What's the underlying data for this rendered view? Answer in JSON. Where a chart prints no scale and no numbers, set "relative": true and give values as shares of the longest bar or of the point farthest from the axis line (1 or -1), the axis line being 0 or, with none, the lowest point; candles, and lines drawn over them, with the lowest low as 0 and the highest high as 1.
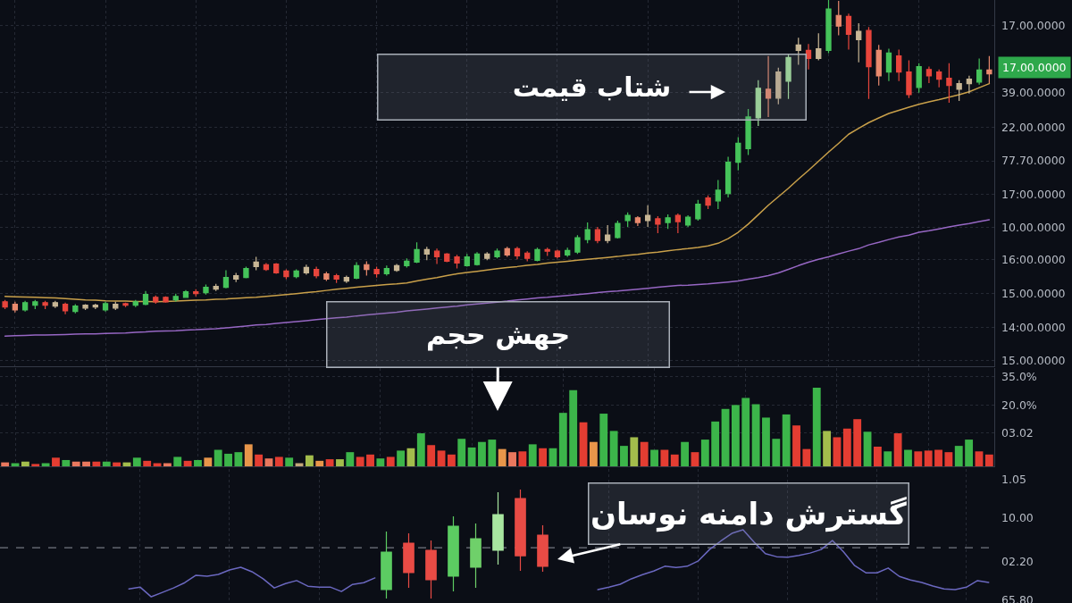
{
  "chart_data": [
    {
      "type": "candlestick",
      "relative": true,
      "grid": true,
      "categories": [
        null,
        null,
        null,
        null,
        null,
        null,
        null,
        null,
        null,
        null,
        null,
        null,
        null,
        null,
        null,
        null,
        null,
        null,
        null,
        null,
        null,
        null,
        null,
        null,
        null,
        null,
        null,
        null,
        null,
        null,
        null,
        null,
        null,
        null,
        null,
        null,
        null,
        null,
        null,
        null,
        null,
        null,
        null,
        null,
        null,
        null,
        null,
        null,
        null,
        null,
        null,
        null,
        null,
        null,
        null,
        null,
        null,
        null,
        null,
        null,
        null,
        null,
        null,
        null,
        null,
        null,
        null,
        null,
        null,
        null,
        null,
        null,
        null,
        null,
        null,
        null,
        null,
        null,
        null,
        null,
        null,
        null,
        null,
        null,
        null,
        null,
        null,
        null,
        null,
        null,
        null,
        null,
        null,
        null,
        null,
        null,
        null,
        null,
        null
      ],
      "ohlc": [
        [
          0.04,
          0.046,
          0.017,
          0.023
        ],
        [
          0.032,
          0.04,
          0.006,
          0.014
        ],
        [
          0.014,
          0.043,
          0.009,
          0.037
        ],
        [
          0.029,
          0.046,
          0.017,
          0.04
        ],
        [
          0.037,
          0.043,
          0.017,
          0.029
        ],
        [
          0.026,
          0.043,
          0.02,
          0.037
        ],
        [
          0.032,
          0.037,
          0,
          0.011
        ],
        [
          0.009,
          0.032,
          0.003,
          0.026
        ],
        [
          0.02,
          0.032,
          0.014,
          0.029
        ],
        [
          0.023,
          0.034,
          0.017,
          0.029
        ],
        [
          0.014,
          0.04,
          0.009,
          0.034
        ],
        [
          0.02,
          0.04,
          0.014,
          0.032
        ],
        [
          0.034,
          0.037,
          0.023,
          0.029
        ],
        [
          0.029,
          0.046,
          0.023,
          0.04
        ],
        [
          0.032,
          0.074,
          0.029,
          0.063
        ],
        [
          0.054,
          0.06,
          0.034,
          0.04
        ],
        [
          0.054,
          0.057,
          0.037,
          0.04
        ],
        [
          0.046,
          0.066,
          0.04,
          0.057
        ],
        [
          0.054,
          0.077,
          0.052,
          0.072
        ],
        [
          0.072,
          0.08,
          0.057,
          0.066
        ],
        [
          0.069,
          0.095,
          0.063,
          0.086
        ],
        [
          0.08,
          0.097,
          0.074,
          0.089
        ],
        [
          0.086,
          0.14,
          0.083,
          0.117
        ],
        [
          0.112,
          0.132,
          0.103,
          0.123
        ],
        [
          0.117,
          0.152,
          0.115,
          0.146
        ],
        [
          0.152,
          0.183,
          0.14,
          0.166
        ],
        [
          0.158,
          0.163,
          0.138,
          0.143
        ],
        [
          0.16,
          0.163,
          0.129,
          0.132
        ],
        [
          0.138,
          0.143,
          0.112,
          0.12
        ],
        [
          0.12,
          0.143,
          0.115,
          0.138
        ],
        [
          0.132,
          0.158,
          0.126,
          0.149
        ],
        [
          0.143,
          0.152,
          0.115,
          0.123
        ],
        [
          0.129,
          0.135,
          0.106,
          0.112
        ],
        [
          0.123,
          0.129,
          0.1,
          0.112
        ],
        [
          0.106,
          0.123,
          0.1,
          0.117
        ],
        [
          0.115,
          0.166,
          0.112,
          0.155
        ],
        [
          0.158,
          0.169,
          0.123,
          0.143
        ],
        [
          0.143,
          0.152,
          0.117,
          0.129
        ],
        [
          0.129,
          0.155,
          0.123,
          0.146
        ],
        [
          0.14,
          0.16,
          0.135,
          0.155
        ],
        [
          0.155,
          0.178,
          0.149,
          0.169
        ],
        [
          0.166,
          0.229,
          0.163,
          0.206
        ],
        [
          0.192,
          0.215,
          0.172,
          0.206
        ],
        [
          0.201,
          0.209,
          0.16,
          0.183
        ],
        [
          0.192,
          0.195,
          0.166,
          0.169
        ],
        [
          0.183,
          0.189,
          0.146,
          0.163
        ],
        [
          0.155,
          0.192,
          0.152,
          0.183
        ],
        [
          0.158,
          0.198,
          0.155,
          0.192
        ],
        [
          0.178,
          0.198,
          0.172,
          0.192
        ],
        [
          0.183,
          0.209,
          0.178,
          0.201
        ],
        [
          0.209,
          0.215,
          0.183,
          0.189
        ],
        [
          0.209,
          0.215,
          0.175,
          0.186
        ],
        [
          0.195,
          0.201,
          0.169,
          0.178
        ],
        [
          0.172,
          0.212,
          0.169,
          0.206
        ],
        [
          0.206,
          0.212,
          0.186,
          0.201
        ],
        [
          0.201,
          0.206,
          0.178,
          0.183
        ],
        [
          0.189,
          0.212,
          0.183,
          0.203
        ],
        [
          0.198,
          0.252,
          0.192,
          0.244
        ],
        [
          0.238,
          0.292,
          0.226,
          0.269
        ],
        [
          0.269,
          0.278,
          0.226,
          0.235
        ],
        [
          0.235,
          0.284,
          0.226,
          0.252
        ],
        [
          0.244,
          0.298,
          0.241,
          0.289
        ],
        [
          0.298,
          0.324,
          0.278,
          0.315
        ],
        [
          0.307,
          0.312,
          0.281,
          0.292
        ],
        [
          0.298,
          0.347,
          0.278,
          0.315
        ],
        [
          0.304,
          0.312,
          0.258,
          0.287
        ],
        [
          0.292,
          0.318,
          0.272,
          0.307
        ],
        [
          0.315,
          0.321,
          0.258,
          0.295
        ],
        [
          0.284,
          0.315,
          0.278,
          0.309
        ],
        [
          0.304,
          0.364,
          0.298,
          0.35
        ],
        [
          0.37,
          0.378,
          0.335,
          0.347
        ],
        [
          0.361,
          0.427,
          0.335,
          0.395
        ],
        [
          0.384,
          0.501,
          0.372,
          0.484
        ],
        [
          0.484,
          0.564,
          0.458,
          0.544
        ],
        [
          0.527,
          0.653,
          0.507,
          0.628
        ],
        [
          0.625,
          0.745,
          0.599,
          0.719
        ],
        [
          0.716,
          0.822,
          0.628,
          0.688
        ],
        [
          0.688,
          0.785,
          0.668,
          0.771
        ],
        [
          0.742,
          0.828,
          0.685,
          0.817
        ],
        [
          0.84,
          0.88,
          0.794,
          0.857
        ],
        [
          0.84,
          0.86,
          0.779,
          0.814
        ],
        [
          0.814,
          0.894,
          0.808,
          0.845
        ],
        [
          0.84,
          1,
          0.831,
          0.971
        ],
        [
          0.951,
          0.997,
          0.888,
          0.917
        ],
        [
          0.948,
          0.957,
          0.842,
          0.891
        ],
        [
          0.874,
          0.926,
          0.802,
          0.9
        ],
        [
          0.903,
          0.914,
          0.685,
          0.788
        ],
        [
          0.84,
          0.857,
          0.728,
          0.759
        ],
        [
          0.771,
          0.845,
          0.742,
          0.831
        ],
        [
          0.822,
          0.842,
          0.742,
          0.771
        ],
        [
          0.771,
          0.808,
          0.688,
          0.699
        ],
        [
          0.722,
          0.799,
          0.705,
          0.788
        ],
        [
          0.779,
          0.788,
          0.736,
          0.759
        ],
        [
          0.771,
          0.779,
          0.722,
          0.748
        ],
        [
          0.751,
          0.799,
          0.673,
          0.728
        ],
        [
          0.716,
          0.745,
          0.679,
          0.734
        ],
        [
          0.734,
          0.759,
          0.702,
          0.748
        ],
        [
          0.739,
          0.814,
          0.731,
          0.777
        ],
        [
          0.777,
          0.822,
          0.736,
          0.765
        ]
      ],
      "colors": [
        "#e8453c",
        "#e98a6e",
        "#45c35a",
        "#45c35a",
        "#e8453c",
        "#c8b695",
        "#e8453c",
        "#45c35a",
        "#c8b695",
        "#c8b695",
        "#45c35a",
        "#c8b695",
        "#e8453c",
        "#45c35a",
        "#45c35a",
        "#e8453c",
        "#e8453c",
        "#45c35a",
        "#45c35a",
        "#e8453c",
        "#45c35a",
        "#c8b695",
        "#45c35a",
        "#c8b695",
        "#45c35a",
        "#c8b695",
        "#e8453c",
        "#e8453c",
        "#e8453c",
        "#45c35a",
        "#c8b695",
        "#e8453c",
        "#e98a6e",
        "#e8453c",
        "#c8b695",
        "#45c35a",
        "#e98a6e",
        "#e8453c",
        "#45c35a",
        "#c8b695",
        "#45c35a",
        "#45c35a",
        "#c8b695",
        "#e8453c",
        "#e8453c",
        "#e8453c",
        "#45c35a",
        "#45c35a",
        "#c8b695",
        "#45c35a",
        "#e98a6e",
        "#e8453c",
        "#e8453c",
        "#45c35a",
        "#e8453c",
        "#e8453c",
        "#45c35a",
        "#45c35a",
        "#45c35a",
        "#e8453c",
        "#c8b695",
        "#45c35a",
        "#45c35a",
        "#e98a6e",
        "#c8b695",
        "#e8453c",
        "#45c35a",
        "#e8453c",
        "#45c35a",
        "#45c35a",
        "#e8453c",
        "#45c35a",
        "#45c35a",
        "#45c35a",
        "#45c35a",
        "#a3e29c",
        "#e98a6e",
        "#c8b695",
        "#a3e29c",
        "#c8b695",
        "#e8453c",
        "#c8b695",
        "#45c35a",
        "#e98a6e",
        "#e8453c",
        "#c8b695",
        "#e8453c",
        "#e98a6e",
        "#45c35a",
        "#e8453c",
        "#e8453c",
        "#45c35a",
        "#e8453c",
        "#e8453c",
        "#e8453c",
        "#c8b695",
        "#c8b695",
        "#45c35a",
        "#e98a6e"
      ],
      "series": [
        {
          "type": "line",
          "color": "#c9a04a",
          "values": [
            0.057,
            0.056,
            0.055,
            0.054,
            0.053,
            0.052,
            0.05,
            0.048,
            0.046,
            0.045,
            0.043,
            0.042,
            0.042,
            0.041,
            0.041,
            0.04,
            0.041,
            0.042,
            0.044,
            0.045,
            0.046,
            0.048,
            0.049,
            0.051,
            0.053,
            0.054,
            0.057,
            0.06,
            0.063,
            0.066,
            0.069,
            0.072,
            0.076,
            0.08,
            0.083,
            0.086,
            0.089,
            0.092,
            0.095,
            0.097,
            0.1,
            0.106,
            0.112,
            0.117,
            0.123,
            0.129,
            0.133,
            0.137,
            0.141,
            0.145,
            0.149,
            0.152,
            0.156,
            0.159,
            0.163,
            0.166,
            0.169,
            0.172,
            0.175,
            0.178,
            0.181,
            0.184,
            0.188,
            0.191,
            0.195,
            0.198,
            0.202,
            0.206,
            0.209,
            0.213,
            0.218,
            0.226,
            0.241,
            0.261,
            0.287,
            0.317,
            0.347,
            0.374,
            0.401,
            0.43,
            0.458,
            0.487,
            0.516,
            0.544,
            0.573,
            0.592,
            0.61,
            0.625,
            0.639,
            0.649,
            0.659,
            0.668,
            0.676,
            0.683,
            0.691,
            0.699,
            0.708,
            0.721,
            0.734
          ]
        },
        {
          "type": "line",
          "color": "#9767c4",
          "values": [
            -0.069,
            -0.068,
            -0.067,
            -0.066,
            -0.066,
            -0.065,
            -0.064,
            -0.063,
            -0.062,
            -0.062,
            -0.061,
            -0.06,
            -0.059,
            -0.057,
            -0.056,
            -0.054,
            -0.053,
            -0.052,
            -0.05,
            -0.049,
            -0.047,
            -0.046,
            -0.043,
            -0.04,
            -0.037,
            -0.034,
            -0.032,
            -0.029,
            -0.026,
            -0.023,
            -0.02,
            -0.017,
            -0.014,
            -0.011,
            -0.009,
            -0.005,
            -0.002,
            0.001,
            0.004,
            0.007,
            0.011,
            0.014,
            0.017,
            0.02,
            0.023,
            0.026,
            0.03,
            0.033,
            0.036,
            0.039,
            0.042,
            0.046,
            0.049,
            0.052,
            0.054,
            0.057,
            0.06,
            0.063,
            0.066,
            0.069,
            0.072,
            0.074,
            0.077,
            0.08,
            0.083,
            0.086,
            0.089,
            0.092,
            0.093,
            0.095,
            0.097,
            0.1,
            0.103,
            0.106,
            0.112,
            0.117,
            0.123,
            0.132,
            0.143,
            0.155,
            0.166,
            0.175,
            0.183,
            0.192,
            0.201,
            0.209,
            0.221,
            0.229,
            0.238,
            0.246,
            0.252,
            0.261,
            0.266,
            0.272,
            0.278,
            0.284,
            0.289,
            0.295,
            0.301
          ]
        }
      ],
      "annotations": [
        "شتاب قیمت",
        "17.00.0000",
        "17.00.0000",
        "39.00.0000",
        "22.00.0000",
        "77.70.0000",
        "17:00.0000",
        "10.00.0000",
        "16:00.0000",
        "15.00.0000",
        "14:00.0000",
        "15.00.0000"
      ]
    },
    {
      "type": "bar",
      "relative": true,
      "grid": true,
      "categories": [
        null,
        null,
        null,
        null,
        null,
        null,
        null,
        null,
        null,
        null,
        null,
        null,
        null,
        null,
        null,
        null,
        null,
        null,
        null,
        null,
        null,
        null,
        null,
        null,
        null,
        null,
        null,
        null,
        null,
        null,
        null,
        null,
        null,
        null,
        null,
        null,
        null,
        null,
        null,
        null,
        null,
        null,
        null,
        null,
        null,
        null,
        null,
        null,
        null,
        null,
        null,
        null,
        null,
        null,
        null,
        null,
        null,
        null,
        null,
        null,
        null,
        null,
        null,
        null,
        null,
        null,
        null,
        null,
        null,
        null,
        null,
        null,
        null,
        null,
        null,
        null,
        null,
        null,
        null,
        null,
        null,
        null,
        null,
        null,
        null,
        null,
        null,
        null,
        null,
        null,
        null,
        null,
        null,
        null,
        null,
        null,
        null,
        null
      ],
      "values": [
        0.05,
        0.04,
        0.06,
        0.03,
        0.04,
        0.11,
        0.08,
        0.06,
        0.06,
        0.06,
        0.06,
        0.05,
        0.05,
        0.11,
        0.07,
        0.04,
        0.04,
        0.12,
        0.07,
        0.08,
        0.11,
        0.21,
        0.16,
        0.18,
        0.28,
        0.15,
        0.1,
        0.12,
        0.11,
        0.04,
        0.14,
        0.07,
        0.09,
        0.09,
        0.18,
        0.12,
        0.15,
        0.1,
        0.12,
        0.2,
        0.23,
        0.42,
        0.27,
        0.2,
        0.15,
        0.35,
        0.24,
        0.31,
        0.34,
        0.22,
        0.18,
        0.19,
        0.28,
        0.23,
        0.23,
        0.68,
        0.97,
        0.56,
        0.31,
        0.67,
        0.45,
        0.26,
        0.37,
        0.31,
        0.21,
        0.21,
        0.15,
        0.31,
        0.18,
        0.34,
        0.57,
        0.73,
        0.78,
        0.87,
        0.79,
        0.62,
        0.35,
        0.66,
        0.52,
        0.22,
        1,
        0.45,
        0.37,
        0.48,
        0.6,
        0.44,
        0.25,
        0.19,
        0.42,
        0.21,
        0.19,
        0.2,
        0.21,
        0.18,
        0.26,
        0.34,
        0.19,
        0.15
      ],
      "colors": [
        "#e9785e",
        "#3cb54a",
        "#a3bd4c",
        "#e43d32",
        "#3cb54a",
        "#e43d32",
        "#3cb54a",
        "#e9785e",
        "#e9785e",
        "#e43d32",
        "#3cb54a",
        "#e43d32",
        "#a3bd4c",
        "#3cb54a",
        "#e43d32",
        "#e43d32",
        "#e9785e",
        "#3cb54a",
        "#e43d32",
        "#3cb54a",
        "#e8964a",
        "#3cb54a",
        "#3cb54a",
        "#3cb54a",
        "#e8964a",
        "#e43d32",
        "#e9785e",
        "#e43d32",
        "#3cb54a",
        "#c4a77a",
        "#a3bd4c",
        "#e8964a",
        "#e43d32",
        "#a3bd4c",
        "#3cb54a",
        "#e43d32",
        "#e43d32",
        "#3cb54a",
        "#e43d32",
        "#3cb54a",
        "#a3bd4c",
        "#3cb54a",
        "#e43d32",
        "#e43d32",
        "#e43d32",
        "#3cb54a",
        "#3cb54a",
        "#3cb54a",
        "#3cb54a",
        "#e8964a",
        "#e9785e",
        "#e43d32",
        "#3cb54a",
        "#e43d32",
        "#3cb54a",
        "#3cb54a",
        "#3cb54a",
        "#e43d32",
        "#e8964a",
        "#3cb54a",
        "#3cb54a",
        "#3cb54a",
        "#a3bd4c",
        "#e43d32",
        "#3cb54a",
        "#e43d32",
        "#e43d32",
        "#3cb54a",
        "#e43d32",
        "#3cb54a",
        "#3cb54a",
        "#3cb54a",
        "#3cb54a",
        "#3cb54a",
        "#3cb54a",
        "#3cb54a",
        "#3cb54a",
        "#3cb54a",
        "#e43d32",
        "#e43d32",
        "#3cb54a",
        "#a3bd4c",
        "#e43d32",
        "#e43d32",
        "#e43d32",
        "#3cb54a",
        "#e43d32",
        "#3cb54a",
        "#e43d32",
        "#3cb54a",
        "#e43d32",
        "#e43d32",
        "#e43d32",
        "#e43d32",
        "#3cb54a",
        "#3cb54a",
        "#e43d32",
        "#e43d32"
      ],
      "annotations": [
        "جهش حجم",
        "35.0%",
        "20.0%",
        "03.02"
      ]
    },
    {
      "type": "line",
      "relative": true,
      "grid": true,
      "color": "#6b68c0",
      "categories": [
        null,
        null,
        null,
        null,
        null,
        null,
        null,
        null,
        null,
        null,
        null,
        null,
        null,
        null,
        null,
        null,
        null,
        null,
        null,
        null,
        null,
        null,
        null
      ],
      "values": [
        0.27,
        0.33,
        0,
        0.15,
        0.3,
        0.48,
        0.73,
        0.7,
        0.76,
        0.91,
        1,
        0.85,
        0.61,
        0.3,
        0.45,
        0.55,
        0.36,
        0.33,
        0.33,
        0.18,
        0.42,
        0.48,
        0.64
      ]
    },
    {
      "type": "candlestick",
      "relative": true,
      "categories": [
        null,
        null,
        null,
        null,
        null,
        null,
        null,
        null
      ],
      "ohlc": [
        [
          0.082,
          0.615,
          0,
          0.426
        ],
        [
          0.508,
          0.598,
          0.098,
          0.238
        ],
        [
          0.443,
          0.533,
          0,
          0.172
        ],
        [
          0.205,
          0.754,
          0.066,
          0.664
        ],
        [
          0.287,
          0.689,
          0.098,
          0.549
        ],
        [
          0.443,
          0.975,
          0.311,
          0.77
        ],
        [
          0.918,
          1,
          0.254,
          0.393
        ],
        [
          0.582,
          0.672,
          0.246,
          0.295
        ]
      ],
      "colors": [
        "#5ccc62",
        "#e84b45",
        "#e84b45",
        "#5ccc62",
        "#6fd06a",
        "#a8e6a0",
        "#e84b45",
        "#e84b45"
      ]
    },
    {
      "type": "line",
      "relative": true,
      "grid": "x",
      "color": "#6b68c0",
      "categories": [
        null,
        null,
        null,
        null,
        null,
        null,
        null,
        null,
        null,
        null,
        null,
        null,
        null,
        null,
        null,
        null,
        null,
        null,
        null,
        null,
        null,
        null,
        null,
        null,
        null,
        null,
        null,
        null,
        null,
        null,
        null,
        null,
        null,
        null,
        null,
        null
      ],
      "values": [
        0,
        0.04,
        0.09,
        0.18,
        0.25,
        0.31,
        0.39,
        0.37,
        0.39,
        0.48,
        0.67,
        0.81,
        0.94,
        1,
        0.79,
        0.6,
        0.55,
        0.54,
        0.57,
        0.61,
        0.67,
        0.82,
        0.63,
        0.4,
        0.28,
        0.28,
        0.36,
        0.22,
        0.16,
        0.12,
        0.06,
        0.01,
        0,
        0.04,
        0.15,
        0.12
      ],
      "ref_lines": [
        {
          "axis": "y",
          "value": 0.7,
          "color": "#8d929c",
          "line_style": "dashed"
        }
      ],
      "annotations": [
        "گسترش دامنه نوسان",
        "1.05",
        "10.00",
        "02.20",
        "65.80"
      ]
    }
  ]
}
